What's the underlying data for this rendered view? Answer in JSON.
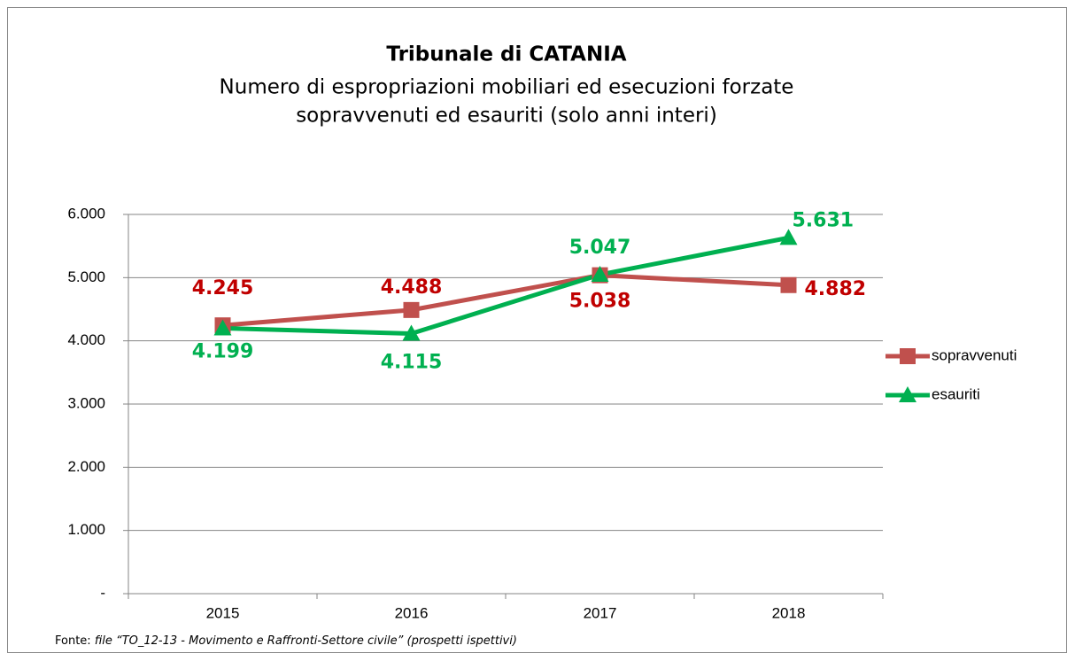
{
  "chart_data": {
    "type": "line",
    "title": "Tribunale di CATANIA",
    "subtitle": [
      "Numero di espropriazioni mobiliari ed esecuzioni forzate",
      "sopravvenuti ed esauriti (solo anni interi)"
    ],
    "categories": [
      "2015",
      "2016",
      "2017",
      "2018"
    ],
    "series": [
      {
        "name": "sopravvenuti",
        "color": "#c0504d",
        "label_color": "#c00000",
        "marker": "square",
        "values": [
          4245,
          4488,
          5038,
          4882
        ],
        "value_labels": [
          "4.245",
          "4.488",
          "5.038",
          "4.882"
        ]
      },
      {
        "name": "esauriti",
        "color": "#00b050",
        "label_color": "#00b050",
        "marker": "triangle",
        "values": [
          4199,
          4115,
          5047,
          5631
        ],
        "value_labels": [
          "4.199",
          "4.115",
          "5.047",
          "5.631"
        ]
      }
    ],
    "ylim": [
      0,
      6000
    ],
    "yticks": [
      {
        "value": 0,
        "label": "-"
      },
      {
        "value": 1000,
        "label": "1.000"
      },
      {
        "value": 2000,
        "label": "2.000"
      },
      {
        "value": 3000,
        "label": "3.000"
      },
      {
        "value": 4000,
        "label": "4.000"
      },
      {
        "value": 5000,
        "label": "5.000"
      },
      {
        "value": 6000,
        "label": "6.000"
      }
    ],
    "grid": true,
    "legend": "right",
    "source_label": "Fonte:",
    "source_text": "file “TO_12-13 - Movimento e Raffronti-Settore civile” (prospetti ispettivi)"
  }
}
